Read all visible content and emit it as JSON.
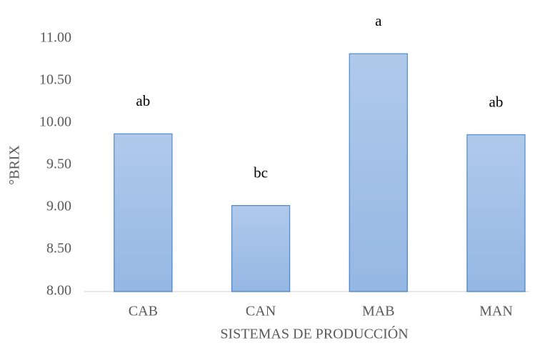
{
  "chart_data": {
    "type": "bar",
    "x_label": "SISTEMAS DE PRODUCCIÓN",
    "y_label": "°BRIX",
    "categories": [
      "CAB",
      "CAN",
      "MAB",
      "MAN"
    ],
    "values": [
      9.87,
      9.02,
      10.82,
      9.86
    ],
    "significance_letters": [
      "ab",
      "bc",
      "a",
      "ab"
    ],
    "color": "#a2c0e8",
    "ylim": [
      8,
      11
    ],
    "yticks": [
      {
        "value": 8,
        "label": "8.00"
      },
      {
        "value": 8.5,
        "label": "8.50"
      },
      {
        "value": 9,
        "label": "9.00"
      },
      {
        "value": 9.5,
        "label": "9.50"
      },
      {
        "value": 10,
        "label": "10.00"
      },
      {
        "value": 10.5,
        "label": "10.50"
      },
      {
        "value": 11,
        "label": "11.00"
      }
    ],
    "grid": false
  }
}
